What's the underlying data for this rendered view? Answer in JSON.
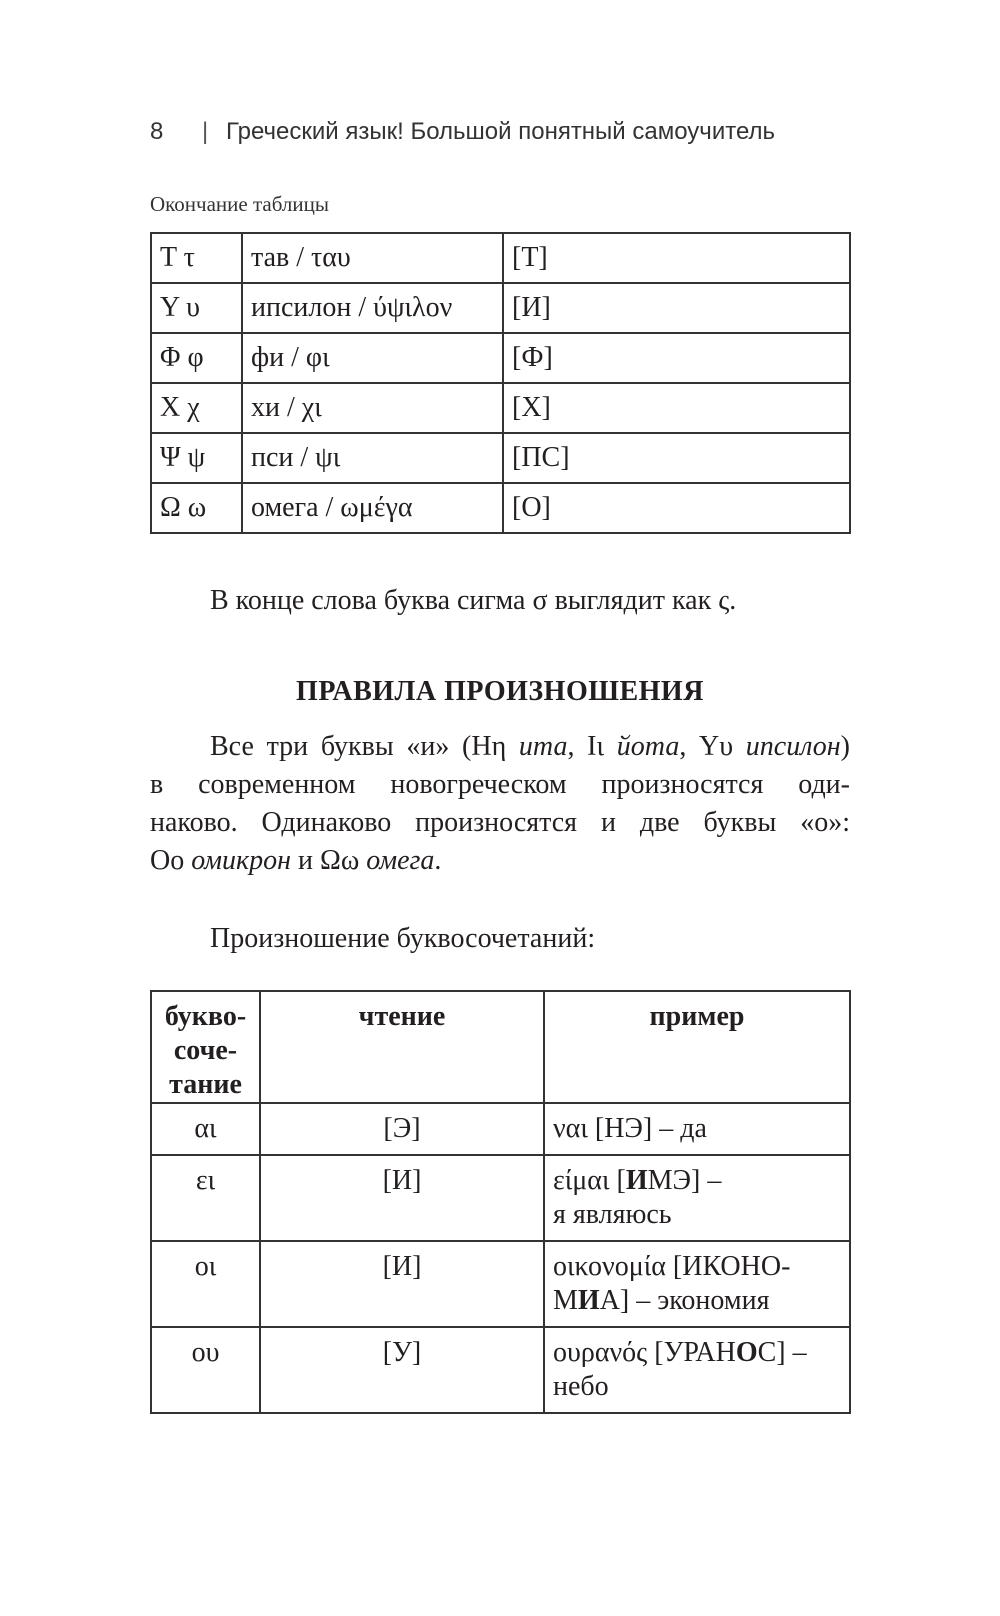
{
  "header": {
    "page_number": "8",
    "separator": "|",
    "book_title": "Греческий язык! Большой понятный самоучитель"
  },
  "table1": {
    "caption": "Окончание таблицы",
    "rows": [
      [
        "Τ τ",
        "тав / ταυ",
        "[Т]"
      ],
      [
        "Υ υ",
        "ипсилон / ύψιλον",
        "[И]"
      ],
      [
        "Φ φ",
        "фи / φι",
        "[Ф]"
      ],
      [
        "Χ χ",
        "хи / χι",
        "[Х]"
      ],
      [
        "Ψ ψ",
        "пси / ψι",
        "[ПС]"
      ],
      [
        "Ω ω",
        "омега / ωμέγα",
        "[О]"
      ]
    ]
  },
  "sigma_note": "В конце слова буква сигма σ выглядит как ς.",
  "section_title": "ПРАВИЛА ПРОИЗНОШЕНИЯ",
  "paragraph": {
    "l1a": "Все три буквы «и» (Ηη ",
    "l1b": "ита",
    "l1c": ", Ιι ",
    "l1d": "йота",
    "l1e": ", Υυ ",
    "l1f": "ипсилон",
    "l1g": ")",
    "l2": "в современном новогреческом произносятся оди-",
    "l3": "наково. Одинаково произносятся и две буквы «о»:",
    "l4a": "Οο ",
    "l4b": "омикрон",
    "l4c": " и Ωω ",
    "l4d": "омега",
    "l4e": "."
  },
  "combo_intro": "Произношение буквосочетаний:",
  "table2": {
    "headers": {
      "col1_l1": "букво-",
      "col1_l2": "соче-",
      "col1_l3": "тание",
      "col2": "чтение",
      "col3": "пример"
    },
    "rows": [
      {
        "combo": "αι",
        "reading": "[Э]",
        "ex_pre": "ναι [НЭ] – да",
        "ex_bold": "",
        "ex_post": "",
        "ex_line2": ""
      },
      {
        "combo": "ει",
        "reading": "[И]",
        "ex_pre": "είμαι [",
        "ex_bold": "И",
        "ex_post": "МЭ] –",
        "ex_line2": "я являюсь"
      },
      {
        "combo": "οι",
        "reading": "[И]",
        "ex_pre": "οικονομία [ИКОНО-",
        "ex_bold": "",
        "ex_post": "",
        "ex_line2_pre": "М",
        "ex_line2_bold": "И",
        "ex_line2_post": "А] – экономия"
      },
      {
        "combo": "ου",
        "reading": "[У]",
        "ex_pre": "ουρανός [УРАН",
        "ex_bold": "О",
        "ex_post": "С] –",
        "ex_line2": "небо"
      }
    ]
  }
}
